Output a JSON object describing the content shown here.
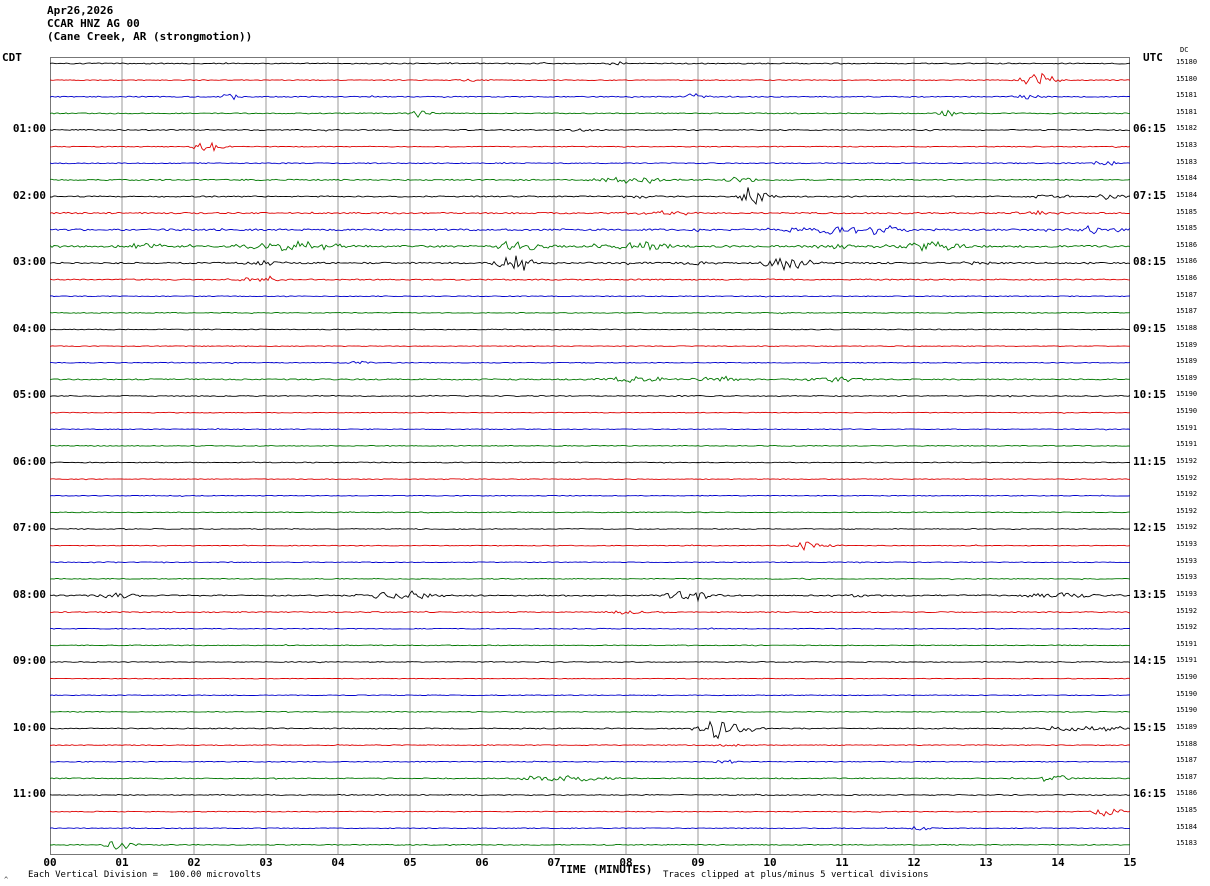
{
  "header": {
    "date": "Apr26,2026",
    "station": "CCAR HNZ AG 00",
    "location": "(Cane Creek, AR (strongmotion))"
  },
  "axes": {
    "left_tz": "CDT",
    "right_tz": "UTC",
    "dc_label": "DC",
    "x_title": "TIME (MINUTES)",
    "x_ticks": [
      "00",
      "01",
      "02",
      "03",
      "04",
      "05",
      "06",
      "07",
      "08",
      "09",
      "10",
      "11",
      "12",
      "13",
      "14",
      "15"
    ]
  },
  "footer": {
    "left": "Each Vertical Division =  100.00 microvolts",
    "right": "Traces clipped at plus/minus 5 vertical divisions",
    "corner_mark": "^"
  },
  "chart_data": {
    "type": "line",
    "subtype": "helicorder-seismogram",
    "title": "CCAR HNZ AG 00 (Cane Creek, AR strongmotion) Apr26,2026",
    "xlabel": "TIME (MINUTES)",
    "x_range": [
      0,
      15
    ],
    "minutes_per_row": 15,
    "grid": "vertical-every-minute",
    "colors": {
      "black": "#000000",
      "red": "#dd0000",
      "blue": "#0000cc",
      "green": "#007700"
    },
    "rows": [
      {
        "start_cdt": "00:00",
        "color": "black",
        "left_label": "",
        "right_label": "",
        "dc": 15180,
        "noise": 0.5,
        "events": [
          {
            "m": 7.9,
            "amp": 1.5,
            "w": 0.1
          }
        ]
      },
      {
        "start_cdt": "00:15",
        "color": "red",
        "left_label": "",
        "right_label": "",
        "dc": 15180,
        "noise": 0.4,
        "events": [
          {
            "m": 5.8,
            "amp": 2,
            "w": 0.12
          },
          {
            "m": 13.75,
            "amp": 6,
            "w": 0.18
          }
        ]
      },
      {
        "start_cdt": "00:30",
        "color": "blue",
        "left_label": "",
        "right_label": "",
        "dc": 15181,
        "noise": 0.5,
        "events": [
          {
            "m": 2.5,
            "amp": 3,
            "w": 0.1
          },
          {
            "m": 8.95,
            "amp": 2.5,
            "w": 0.12
          },
          {
            "m": 13.6,
            "amp": 2,
            "w": 0.15
          }
        ]
      },
      {
        "start_cdt": "00:45",
        "color": "green",
        "left_label": "",
        "right_label": "",
        "dc": 15181,
        "noise": 0.5,
        "events": [
          {
            "m": 5.15,
            "amp": 2.5,
            "w": 0.15
          },
          {
            "m": 12.45,
            "amp": 2.5,
            "w": 0.15
          }
        ]
      },
      {
        "start_cdt": "01:00",
        "color": "black",
        "left_label": "01:00",
        "right_label": "06:15",
        "dc": 15182,
        "noise": 0.5,
        "events": [
          {
            "m": 7.35,
            "amp": 1.8,
            "w": 0.12
          }
        ]
      },
      {
        "start_cdt": "01:15",
        "color": "red",
        "left_label": "",
        "right_label": "",
        "dc": 15183,
        "noise": 0.4,
        "events": [
          {
            "m": 2.2,
            "amp": 5,
            "w": 0.15
          }
        ]
      },
      {
        "start_cdt": "01:30",
        "color": "blue",
        "left_label": "",
        "right_label": "",
        "dc": 15183,
        "noise": 0.5,
        "events": [
          {
            "m": 14.65,
            "amp": 2.5,
            "w": 0.15
          }
        ]
      },
      {
        "start_cdt": "01:45",
        "color": "green",
        "left_label": "",
        "right_label": "",
        "dc": 15184,
        "noise": 0.6,
        "events": [
          {
            "m": 8.1,
            "amp": 3.5,
            "w": 0.35
          },
          {
            "m": 9.65,
            "amp": 2,
            "w": 0.2
          }
        ]
      },
      {
        "start_cdt": "02:00",
        "color": "black",
        "left_label": "02:00",
        "right_label": "07:15",
        "dc": 15184,
        "noise": 0.6,
        "events": [
          {
            "m": 8.2,
            "amp": 2,
            "w": 0.2
          },
          {
            "m": 9.8,
            "amp": 9,
            "w": 0.15
          },
          {
            "m": 13.9,
            "amp": 2,
            "w": 0.2
          },
          {
            "m": 14.7,
            "amp": 2.5,
            "w": 0.15
          }
        ]
      },
      {
        "start_cdt": "02:15",
        "color": "red",
        "left_label": "",
        "right_label": "",
        "dc": 15185,
        "noise": 0.7,
        "events": [
          {
            "m": 8.4,
            "amp": 2,
            "w": 0.3
          },
          {
            "m": 13.7,
            "amp": 2,
            "w": 0.2
          }
        ]
      },
      {
        "start_cdt": "02:30",
        "color": "blue",
        "left_label": "",
        "right_label": "",
        "dc": 15185,
        "noise": 0.9,
        "events": [
          {
            "m": 10.9,
            "amp": 3,
            "w": 0.6
          },
          {
            "m": 11.6,
            "amp": 3,
            "w": 0.4
          },
          {
            "m": 14.6,
            "amp": 3,
            "w": 0.3
          }
        ]
      },
      {
        "start_cdt": "02:45",
        "color": "green",
        "left_label": "",
        "right_label": "",
        "dc": 15186,
        "noise": 1.0,
        "events": [
          {
            "m": 1.3,
            "amp": 3,
            "w": 0.2
          },
          {
            "m": 3.4,
            "amp": 3.5,
            "w": 0.5
          },
          {
            "m": 6.5,
            "amp": 4.5,
            "w": 0.25
          },
          {
            "m": 8.2,
            "amp": 4,
            "w": 0.3
          },
          {
            "m": 10.9,
            "amp": 2.5,
            "w": 0.2
          },
          {
            "m": 12.2,
            "amp": 3.5,
            "w": 0.4
          }
        ]
      },
      {
        "start_cdt": "03:00",
        "color": "black",
        "left_label": "03:00",
        "right_label": "08:15",
        "dc": 15186,
        "noise": 0.8,
        "events": [
          {
            "m": 2.9,
            "amp": 2.5,
            "w": 0.2
          },
          {
            "m": 6.45,
            "amp": 8,
            "w": 0.18
          },
          {
            "m": 9.0,
            "amp": 2.5,
            "w": 0.15
          },
          {
            "m": 10.25,
            "amp": 5.5,
            "w": 0.25
          },
          {
            "m": 13.0,
            "amp": 1.5,
            "w": 0.2
          }
        ]
      },
      {
        "start_cdt": "03:15",
        "color": "red",
        "left_label": "",
        "right_label": "",
        "dc": 15186,
        "noise": 0.6,
        "events": [
          {
            "m": 2.95,
            "amp": 2.5,
            "w": 0.3
          }
        ]
      },
      {
        "start_cdt": "03:30",
        "color": "blue",
        "left_label": "",
        "right_label": "",
        "dc": 15187,
        "noise": 0.4,
        "events": []
      },
      {
        "start_cdt": "03:45",
        "color": "green",
        "left_label": "",
        "right_label": "",
        "dc": 15187,
        "noise": 0.4,
        "events": []
      },
      {
        "start_cdt": "04:00",
        "color": "black",
        "left_label": "04:00",
        "right_label": "09:15",
        "dc": 15188,
        "noise": 0.4,
        "events": []
      },
      {
        "start_cdt": "04:15",
        "color": "red",
        "left_label": "",
        "right_label": "",
        "dc": 15189,
        "noise": 0.35,
        "events": []
      },
      {
        "start_cdt": "04:30",
        "color": "blue",
        "left_label": "",
        "right_label": "",
        "dc": 15189,
        "noise": 0.4,
        "events": [
          {
            "m": 4.3,
            "amp": 1.5,
            "w": 0.15
          }
        ]
      },
      {
        "start_cdt": "04:45",
        "color": "green",
        "left_label": "",
        "right_label": "",
        "dc": 15189,
        "noise": 0.6,
        "events": [
          {
            "m": 8.1,
            "amp": 2.8,
            "w": 0.35
          },
          {
            "m": 9.3,
            "amp": 2.5,
            "w": 0.25
          },
          {
            "m": 10.9,
            "amp": 2.5,
            "w": 0.3
          }
        ]
      },
      {
        "start_cdt": "05:00",
        "color": "black",
        "left_label": "05:00",
        "right_label": "10:15",
        "dc": 15190,
        "noise": 0.45,
        "events": []
      },
      {
        "start_cdt": "05:15",
        "color": "red",
        "left_label": "",
        "right_label": "",
        "dc": 15190,
        "noise": 0.35,
        "events": []
      },
      {
        "start_cdt": "05:30",
        "color": "blue",
        "left_label": "",
        "right_label": "",
        "dc": 15191,
        "noise": 0.35,
        "events": []
      },
      {
        "start_cdt": "05:45",
        "color": "green",
        "left_label": "",
        "right_label": "",
        "dc": 15191,
        "noise": 0.4,
        "events": []
      },
      {
        "start_cdt": "06:00",
        "color": "black",
        "left_label": "06:00",
        "right_label": "11:15",
        "dc": 15192,
        "noise": 0.4,
        "events": []
      },
      {
        "start_cdt": "06:15",
        "color": "red",
        "left_label": "",
        "right_label": "",
        "dc": 15192,
        "noise": 0.35,
        "events": []
      },
      {
        "start_cdt": "06:30",
        "color": "blue",
        "left_label": "",
        "right_label": "",
        "dc": 15192,
        "noise": 0.35,
        "events": []
      },
      {
        "start_cdt": "06:45",
        "color": "green",
        "left_label": "",
        "right_label": "",
        "dc": 15192,
        "noise": 0.4,
        "events": []
      },
      {
        "start_cdt": "07:00",
        "color": "black",
        "left_label": "07:00",
        "right_label": "12:15",
        "dc": 15192,
        "noise": 0.4,
        "events": []
      },
      {
        "start_cdt": "07:15",
        "color": "red",
        "left_label": "",
        "right_label": "",
        "dc": 15193,
        "noise": 0.35,
        "events": [
          {
            "m": 10.5,
            "amp": 3.5,
            "w": 0.15
          },
          {
            "m": 10.9,
            "amp": 1.5,
            "w": 0.1
          }
        ]
      },
      {
        "start_cdt": "07:30",
        "color": "blue",
        "left_label": "",
        "right_label": "",
        "dc": 15193,
        "noise": 0.35,
        "events": []
      },
      {
        "start_cdt": "07:45",
        "color": "green",
        "left_label": "",
        "right_label": "",
        "dc": 15193,
        "noise": 0.4,
        "events": []
      },
      {
        "start_cdt": "08:00",
        "color": "black",
        "left_label": "08:00",
        "right_label": "13:15",
        "dc": 15193,
        "noise": 0.6,
        "events": [
          {
            "m": 0.9,
            "amp": 2.5,
            "w": 0.25
          },
          {
            "m": 4.9,
            "amp": 3.5,
            "w": 0.4
          },
          {
            "m": 8.85,
            "amp": 5.5,
            "w": 0.2
          },
          {
            "m": 9.15,
            "amp": 2.5,
            "w": 0.15
          },
          {
            "m": 11.2,
            "amp": 1.5,
            "w": 0.1
          },
          {
            "m": 14.05,
            "amp": 3,
            "w": 0.4
          }
        ]
      },
      {
        "start_cdt": "08:15",
        "color": "red",
        "left_label": "",
        "right_label": "",
        "dc": 15192,
        "noise": 0.5,
        "events": [
          {
            "m": 8.0,
            "amp": 1.8,
            "w": 0.2
          }
        ]
      },
      {
        "start_cdt": "08:30",
        "color": "blue",
        "left_label": "",
        "right_label": "",
        "dc": 15192,
        "noise": 0.4,
        "events": []
      },
      {
        "start_cdt": "08:45",
        "color": "green",
        "left_label": "",
        "right_label": "",
        "dc": 15191,
        "noise": 0.4,
        "events": []
      },
      {
        "start_cdt": "09:00",
        "color": "black",
        "left_label": "09:00",
        "right_label": "14:15",
        "dc": 15191,
        "noise": 0.4,
        "events": []
      },
      {
        "start_cdt": "09:15",
        "color": "red",
        "left_label": "",
        "right_label": "",
        "dc": 15190,
        "noise": 0.3,
        "events": []
      },
      {
        "start_cdt": "09:30",
        "color": "blue",
        "left_label": "",
        "right_label": "",
        "dc": 15190,
        "noise": 0.35,
        "events": []
      },
      {
        "start_cdt": "09:45",
        "color": "green",
        "left_label": "",
        "right_label": "",
        "dc": 15190,
        "noise": 0.4,
        "events": []
      },
      {
        "start_cdt": "10:00",
        "color": "black",
        "left_label": "10:00",
        "right_label": "15:15",
        "dc": 15189,
        "noise": 0.5,
        "events": [
          {
            "m": 9.3,
            "amp": 9,
            "w": 0.2
          },
          {
            "m": 9.65,
            "amp": 3,
            "w": 0.2
          },
          {
            "m": 14.3,
            "amp": 2.5,
            "w": 0.5
          }
        ]
      },
      {
        "start_cdt": "10:15",
        "color": "red",
        "left_label": "",
        "right_label": "",
        "dc": 15188,
        "noise": 0.4,
        "events": [
          {
            "m": 9.4,
            "amp": 1.5,
            "w": 0.15
          }
        ]
      },
      {
        "start_cdt": "10:30",
        "color": "blue",
        "left_label": "",
        "right_label": "",
        "dc": 15187,
        "noise": 0.4,
        "events": [
          {
            "m": 9.4,
            "amp": 1.5,
            "w": 0.15
          }
        ]
      },
      {
        "start_cdt": "10:45",
        "color": "green",
        "left_label": "",
        "right_label": "",
        "dc": 15187,
        "noise": 0.5,
        "events": [
          {
            "m": 7.1,
            "amp": 2.5,
            "w": 0.5
          },
          {
            "m": 13.95,
            "amp": 4.5,
            "w": 0.12
          }
        ]
      },
      {
        "start_cdt": "11:00",
        "color": "black",
        "left_label": "11:00",
        "right_label": "16:15",
        "dc": 15186,
        "noise": 0.45,
        "events": []
      },
      {
        "start_cdt": "11:15",
        "color": "red",
        "left_label": "",
        "right_label": "",
        "dc": 15185,
        "noise": 0.4,
        "events": [
          {
            "m": 14.7,
            "amp": 4.5,
            "w": 0.15
          }
        ]
      },
      {
        "start_cdt": "11:30",
        "color": "blue",
        "left_label": "",
        "right_label": "",
        "dc": 15184,
        "noise": 0.4,
        "events": [
          {
            "m": 12.1,
            "amp": 2,
            "w": 0.15
          }
        ]
      },
      {
        "start_cdt": "11:45",
        "color": "green",
        "left_label": "",
        "right_label": "",
        "dc": 15183,
        "noise": 0.45,
        "events": [
          {
            "m": 0.95,
            "amp": 3.5,
            "w": 0.15
          }
        ]
      }
    ]
  }
}
